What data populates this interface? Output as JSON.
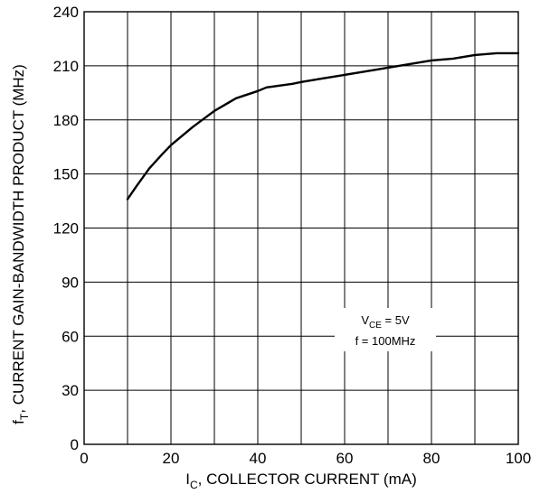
{
  "chart_data": {
    "type": "line",
    "xlabel_main": "I",
    "xlabel_sub": "C",
    "xlabel_rest": ", COLLECTOR CURRENT (mA)",
    "ylabel_main": "f",
    "ylabel_sub": "T",
    "ylabel_rest": ", CURRENT GAIN-BANDWIDTH PRODUCT (MHz)",
    "xlim": [
      0,
      100
    ],
    "ylim": [
      0,
      240
    ],
    "x_ticks": [
      0,
      20,
      40,
      60,
      80,
      100
    ],
    "x_tick_labels": [
      "0",
      "20",
      "40",
      "60",
      "80",
      "100"
    ],
    "y_ticks": [
      0,
      30,
      60,
      90,
      120,
      150,
      180,
      210,
      240
    ],
    "y_tick_labels": [
      "0",
      "30",
      "60",
      "90",
      "120",
      "150",
      "180",
      "210",
      "240"
    ],
    "x_grid_step": 10,
    "y_grid_step": 30,
    "grid": true,
    "annotation": {
      "line1_main": "V",
      "line1_sub": "CE",
      "line1_rest": " = 5V",
      "line2": "f = 100MHz"
    },
    "series": [
      {
        "x": [
          10,
          12,
          15,
          18,
          20,
          25,
          30,
          35,
          40,
          42,
          45,
          48,
          50,
          55,
          60,
          65,
          70,
          75,
          80,
          85,
          90,
          95,
          100
        ],
        "y": [
          136,
          143,
          153,
          161,
          166,
          176,
          185,
          192,
          196,
          198,
          199,
          200,
          201,
          203,
          205,
          207,
          209,
          211,
          213,
          214,
          216,
          217,
          217
        ]
      }
    ]
  }
}
